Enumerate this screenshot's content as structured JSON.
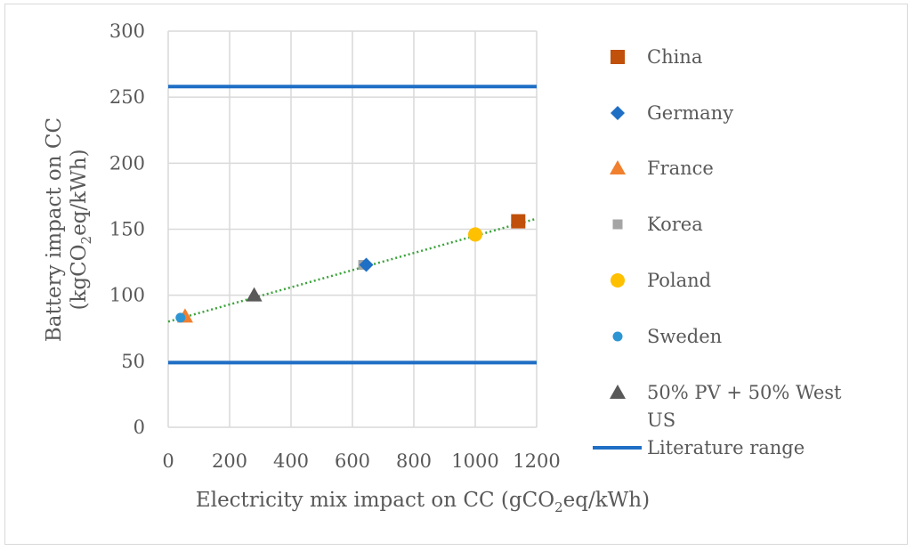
{
  "chart_data": {
    "type": "scatter",
    "xlabel_parts": [
      "Electricity mix impact on CC (gCO",
      "2",
      "eq/kWh)"
    ],
    "ylabel_line1": "Battery impact on CC",
    "ylabel_parts": [
      "(kgCO",
      "2",
      "eq/kWh)"
    ],
    "xlim": [
      0,
      1200
    ],
    "ylim": [
      0,
      300
    ],
    "x_ticks": [
      "0",
      "200",
      "400",
      "600",
      "800",
      "1000",
      "1200"
    ],
    "y_ticks": [
      "0",
      "50",
      "100",
      "150",
      "200",
      "250",
      "300"
    ],
    "grid": true,
    "legend_position": "right",
    "series": [
      {
        "name": "China",
        "marker": "square",
        "color": "#c0500a",
        "x": [
          1140
        ],
        "y": [
          156
        ]
      },
      {
        "name": "Germany",
        "marker": "diamond",
        "color": "#1f6fc5",
        "x": [
          645
        ],
        "y": [
          123
        ]
      },
      {
        "name": "France",
        "marker": "triangle",
        "color": "#f07f2e",
        "x": [
          55
        ],
        "y": [
          84
        ]
      },
      {
        "name": "Korea",
        "marker": "small-square",
        "color": "#a5a5a5",
        "x": [
          635
        ],
        "y": [
          123
        ]
      },
      {
        "name": "Poland",
        "marker": "circle",
        "color": "#ffc000",
        "x": [
          1000
        ],
        "y": [
          146
        ]
      },
      {
        "name": "Sweden",
        "marker": "small-circle",
        "color": "#2e95d3",
        "x": [
          40
        ],
        "y": [
          83
        ]
      },
      {
        "name": "50% PV + 50% West US",
        "legend_lines": [
          "50% PV + 50% West",
          "US"
        ],
        "marker": "triangle",
        "color": "#595959",
        "x": [
          280
        ],
        "y": [
          100
        ]
      }
    ],
    "reference_lines": {
      "name": "Literature range",
      "color": "#1f6fc5",
      "y_values": [
        49,
        258
      ]
    },
    "trendline": {
      "color": "#3aa33a",
      "style": "dotted",
      "x_range": [
        0,
        1200
      ],
      "intercept": 80,
      "slope": 0.065
    }
  }
}
